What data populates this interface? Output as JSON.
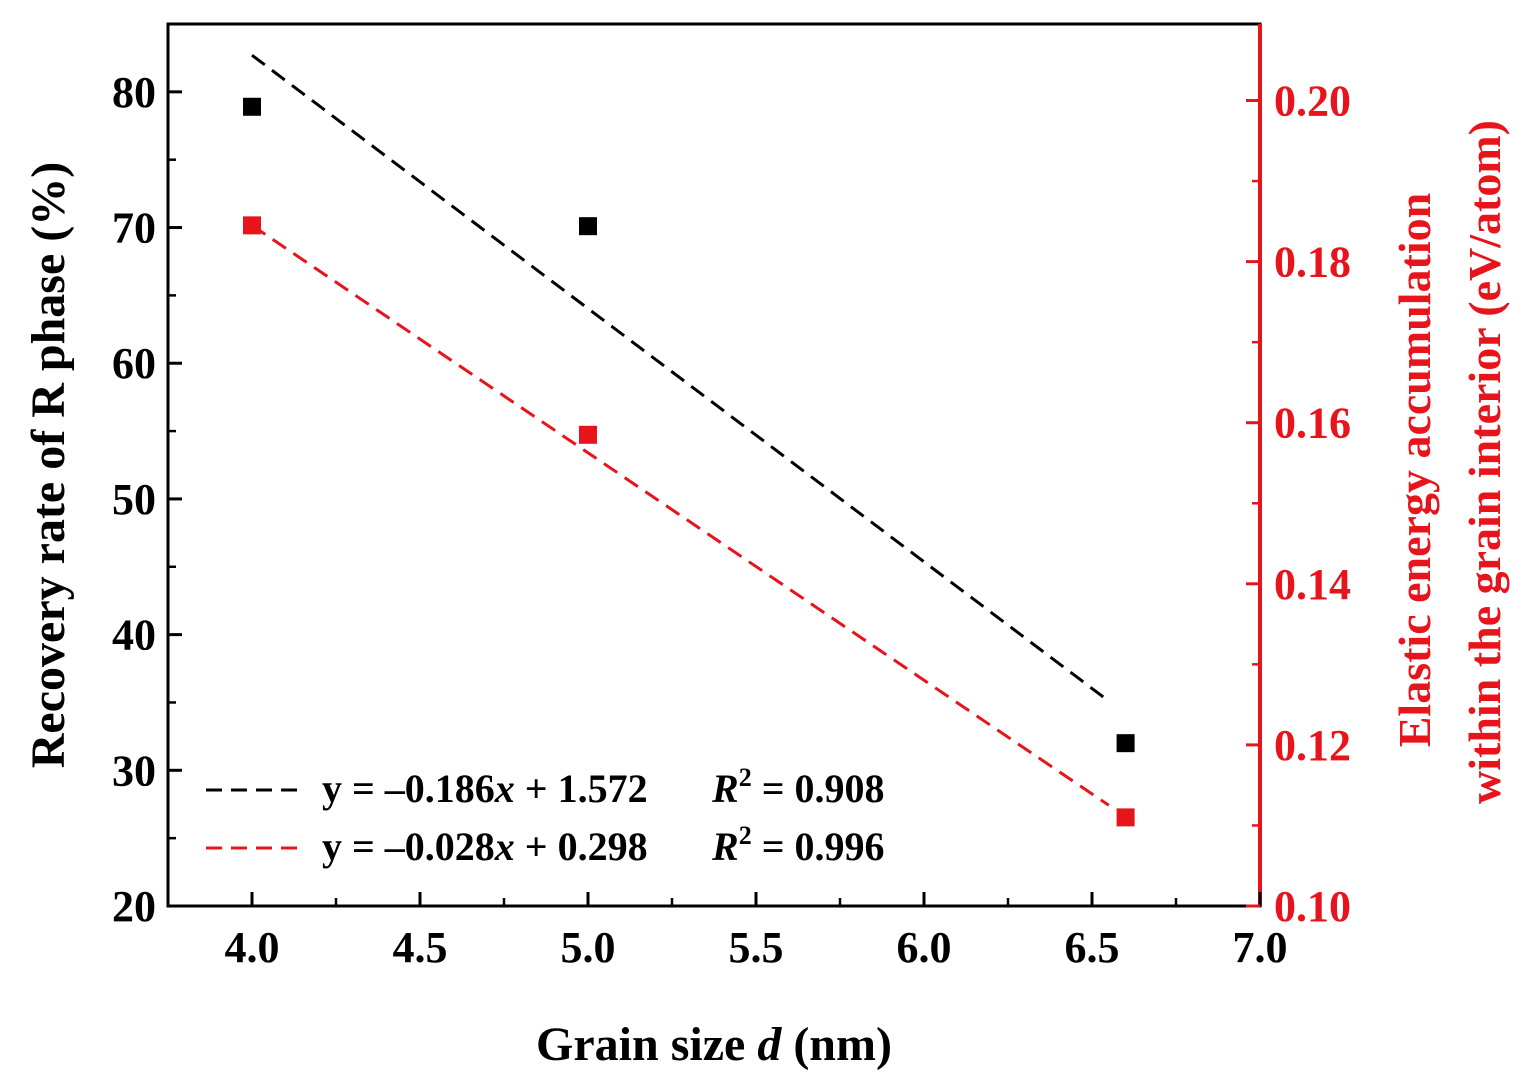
{
  "chart_data": {
    "type": "scatter",
    "xlabel_main": "Grain size ",
    "xlabel_italic": "d",
    "xlabel_unit": " (nm)",
    "ylabel_left": "Recovery rate of R phase (%)",
    "ylabel_right_line1": "Elastic energy accumulation",
    "ylabel_right_line2": "within the grain interior  (eV/atom)",
    "xlim": [
      3.75,
      7.0
    ],
    "ylim_left": [
      20,
      85
    ],
    "ylim_right": [
      0.1,
      0.2095
    ],
    "x_ticks": [
      4.0,
      4.5,
      5.0,
      5.5,
      6.0,
      6.5,
      7.0
    ],
    "x_tick_labels": [
      "4.0",
      "4.5",
      "5.0",
      "5.5",
      "6.0",
      "6.5",
      "7.0"
    ],
    "y_left_ticks": [
      20,
      30,
      40,
      50,
      60,
      70,
      80
    ],
    "y_left_tick_labels": [
      "20",
      "30",
      "40",
      "50",
      "60",
      "70",
      "80"
    ],
    "y_right_ticks": [
      0.1,
      0.12,
      0.14,
      0.16,
      0.18,
      0.2
    ],
    "y_right_tick_labels": [
      "0.10",
      "0.12",
      "0.14",
      "0.16",
      "0.18",
      "0.20"
    ],
    "series": [
      {
        "name": "Recovery rate",
        "axis": "left",
        "color": "#000000",
        "x": [
          4.0,
          5.0,
          6.6
        ],
        "y": [
          78.9,
          70.1,
          32.0
        ],
        "fit": {
          "x": [
            4.0,
            6.55
          ],
          "y": [
            82.7,
            35.1
          ]
        }
      },
      {
        "name": "Elastic energy",
        "axis": "right",
        "color": "#e8141b",
        "x": [
          4.0,
          5.0,
          6.6
        ],
        "y": [
          0.1845,
          0.1585,
          0.111
        ],
        "fit": {
          "x": [
            4.0,
            6.55
          ],
          "y": [
            0.1845,
            0.1125
          ]
        }
      }
    ],
    "legend": [
      {
        "color": "#000000",
        "eq_prefix": "y = –0.186",
        "eq_var": "x",
        "eq_suffix": " + 1.572",
        "r2_var": "R",
        "r2_sup": "2",
        "r2_value": " = 0.908"
      },
      {
        "color": "#e8141b",
        "eq_prefix": "y = –0.028",
        "eq_var": "x",
        "eq_suffix": " + 0.298",
        "r2_var": "R",
        "r2_sup": "2",
        "r2_value": " = 0.996"
      }
    ],
    "legend_position": "bottom-left"
  }
}
